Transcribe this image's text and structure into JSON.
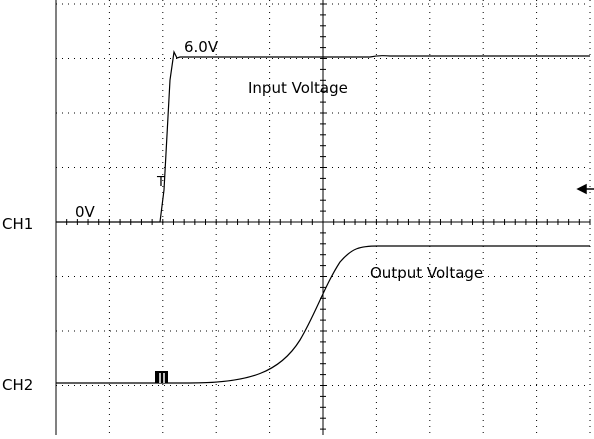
{
  "screen": {
    "traces": [
      {
        "label": "Input Voltage",
        "level_label": "6.0V",
        "baseline_label": "0V",
        "channel": "CH1"
      },
      {
        "label": "Output Voltage",
        "channel": "CH2"
      }
    ]
  }
}
